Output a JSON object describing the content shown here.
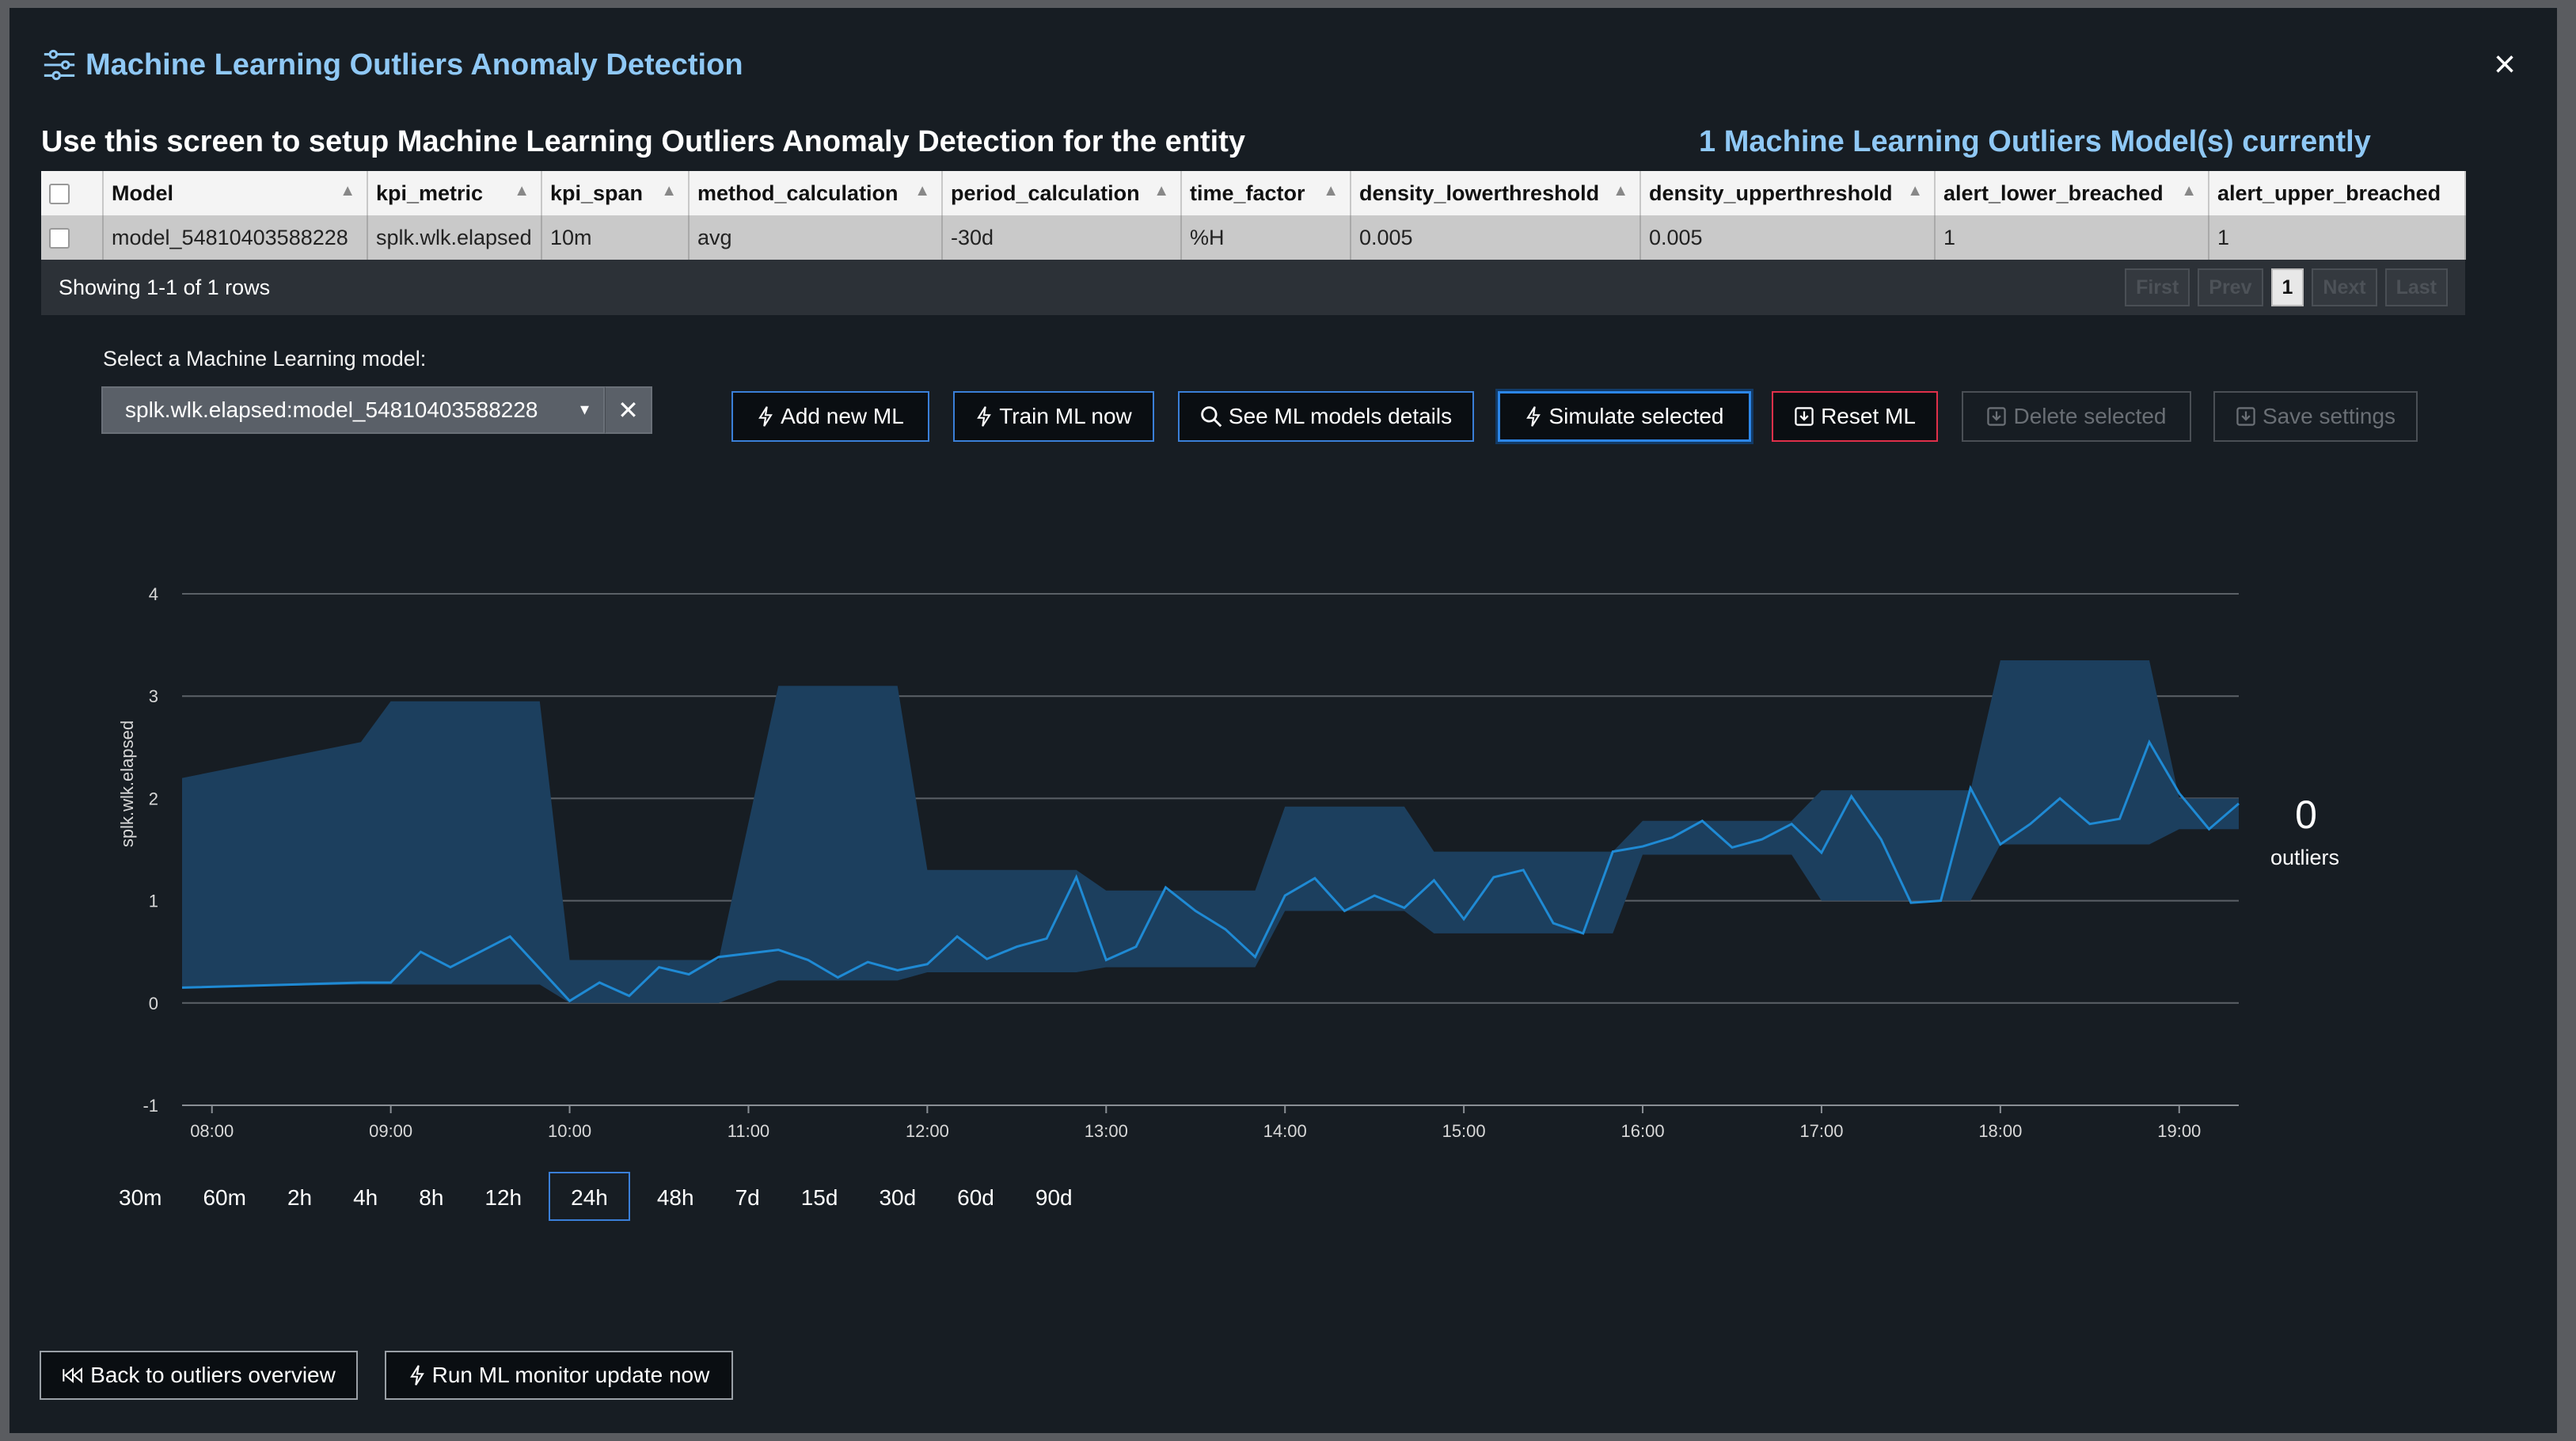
{
  "header": {
    "title": "Machine Learning Outliers Anomaly Detection",
    "close": "×"
  },
  "subtitle": "Use this screen to setup Machine Learning Outliers Anomaly Detection for the entity",
  "model_count": "1 Machine Learning Outliers Model(s) currently",
  "table": {
    "columns": [
      "Model",
      "kpi_metric",
      "kpi_span",
      "method_calculation",
      "period_calculation",
      "time_factor",
      "density_lowerthreshold",
      "density_upperthreshold",
      "alert_lower_breached",
      "alert_upper_breached"
    ],
    "row": [
      "model_54810403588228",
      "splk.wlk.elapsed",
      "10m",
      "avg",
      "-30d",
      "%H",
      "0.005",
      "0.005",
      "1",
      "1"
    ],
    "footer": "Showing 1-1 of 1 rows",
    "pager": {
      "first": "First",
      "prev": "Prev",
      "page": "1",
      "next": "Next",
      "last": "Last"
    }
  },
  "select": {
    "label": "Select a Machine Learning model:",
    "value": "splk.wlk.elapsed:model_54810403588228",
    "caret": "▾",
    "clear": "✕"
  },
  "buttons": {
    "add": "Add new ML",
    "train": "Train ML now",
    "details": "See ML models details",
    "simulate": "Simulate selected",
    "reset": "Reset ML",
    "delete": "Delete selected",
    "save": "Save settings"
  },
  "colors": {
    "accent": "#3a7fd8",
    "danger": "#e0304a",
    "title": "#8fc8f5",
    "band": "#1c3f5e",
    "line": "#1f8ad4"
  },
  "chart_data": {
    "type": "line",
    "ylabel": "splk.wlk.elapsed",
    "ylim": [
      -1,
      4
    ],
    "yticks": [
      "-1",
      "0",
      "1",
      "2",
      "3",
      "4"
    ],
    "xlim": [
      7.833,
      19.333
    ],
    "xticks": [
      "08:00",
      "09:00",
      "10:00",
      "11:00",
      "12:00",
      "13:00",
      "14:00",
      "15:00",
      "16:00",
      "17:00",
      "18:00",
      "19:00"
    ],
    "series": [
      {
        "name": "splk.wlk.elapsed",
        "x": [
          7.833,
          8.833,
          9,
          9.167,
          9.333,
          9.667,
          10,
          10.167,
          10.333,
          10.5,
          10.667,
          10.833,
          11.167,
          11.333,
          11.5,
          11.667,
          11.833,
          12,
          12.167,
          12.333,
          12.5,
          12.667,
          12.833,
          13,
          13.167,
          13.333,
          13.5,
          13.667,
          13.833,
          14,
          14.167,
          14.333,
          14.5,
          14.667,
          14.833,
          15,
          15.167,
          15.333,
          15.5,
          15.667,
          15.833,
          16,
          16.167,
          16.333,
          16.5,
          16.667,
          16.833,
          17,
          17.167,
          17.333,
          17.5,
          17.667,
          17.833,
          18,
          18.167,
          18.333,
          18.5,
          18.667,
          18.833,
          19,
          19.167,
          19.333
        ],
        "y": [
          0.15,
          0.2,
          0.2,
          0.5,
          0.35,
          0.65,
          0.02,
          0.2,
          0.07,
          0.35,
          0.28,
          0.45,
          0.52,
          0.42,
          0.25,
          0.4,
          0.32,
          0.38,
          0.65,
          0.43,
          0.55,
          0.63,
          1.23,
          0.42,
          0.55,
          1.13,
          0.9,
          0.72,
          0.45,
          1.05,
          1.22,
          0.9,
          1.05,
          0.93,
          1.2,
          0.82,
          1.23,
          1.3,
          0.78,
          0.68,
          1.48,
          1.53,
          1.62,
          1.78,
          1.52,
          1.6,
          1.75,
          1.47,
          2.02,
          1.6,
          0.98,
          1.0,
          2.1,
          1.55,
          1.75,
          2.0,
          1.75,
          1.8,
          2.55,
          2.05,
          1.7,
          1.95
        ]
      },
      {
        "name": "band_upper",
        "x": [
          7.833,
          8.833,
          9,
          9.5,
          9.833,
          10,
          10.833,
          11.167,
          11.833,
          12,
          12.833,
          13,
          13.833,
          14,
          14.667,
          14.833,
          15.5,
          15.833,
          16,
          16.833,
          17,
          17.833,
          18,
          18.833,
          19,
          19.333
        ],
        "y": [
          2.2,
          2.55,
          2.95,
          2.95,
          2.95,
          0.42,
          0.42,
          3.1,
          3.1,
          1.3,
          1.3,
          1.1,
          1.1,
          1.92,
          1.92,
          1.48,
          1.48,
          1.48,
          1.78,
          1.78,
          2.08,
          2.08,
          3.35,
          3.35,
          2.0,
          2.0
        ]
      },
      {
        "name": "band_lower",
        "x": [
          7.833,
          8.833,
          9,
          9.833,
          10,
          10.833,
          11.167,
          11.833,
          12,
          12.833,
          13,
          13.833,
          14,
          14.667,
          14.833,
          15.5,
          15.833,
          16,
          16.833,
          17,
          17.833,
          18,
          18.833,
          19,
          19.333
        ],
        "y": [
          0.15,
          0.18,
          0.18,
          0.18,
          0.0,
          0.0,
          0.22,
          0.22,
          0.3,
          0.3,
          0.35,
          0.35,
          0.9,
          0.9,
          0.68,
          0.68,
          0.68,
          1.45,
          1.45,
          1.0,
          1.0,
          1.55,
          1.55,
          1.7,
          1.7
        ]
      }
    ],
    "outliers": {
      "count": "0",
      "label": "outliers"
    }
  },
  "time_ranges": [
    "30m",
    "60m",
    "2h",
    "4h",
    "8h",
    "12h",
    "24h",
    "48h",
    "7d",
    "15d",
    "30d",
    "60d",
    "90d"
  ],
  "selected_range": "24h",
  "footer": {
    "back": "Back to outliers overview",
    "run": "Run ML monitor update now"
  }
}
